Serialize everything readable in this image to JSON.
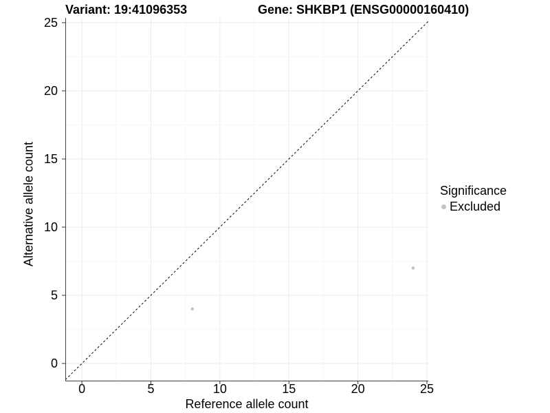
{
  "chart_data": {
    "type": "scatter",
    "title_left": "Variant: 19:41096353",
    "title_right": "Gene: SHKBP1 (ENSG00000160410)",
    "xlabel": "Reference allele count",
    "ylabel": "Alternative allele count",
    "xlim": [
      -1.2,
      25.1
    ],
    "ylim": [
      -1.26,
      25.35
    ],
    "x_ticks": [
      0,
      5,
      10,
      15,
      20,
      25
    ],
    "y_ticks": [
      0,
      5,
      10,
      15,
      20,
      25
    ],
    "x_minor_ticks": [
      2.5,
      7.5,
      12.5,
      17.5,
      22.5
    ],
    "y_minor_ticks": [
      2.5,
      7.5,
      12.5,
      17.5,
      22.5
    ],
    "grid": "on",
    "identity_line": {
      "present": true,
      "style": "dashed",
      "color": "#000000"
    },
    "points": [
      {
        "x": 8,
        "y": 4,
        "series": "Excluded"
      },
      {
        "x": 24,
        "y": 7,
        "series": "Excluded"
      }
    ],
    "point_color": "#c2c2c2",
    "colors": {
      "grid_major": "#ebebeb",
      "grid_minor": "#f6f6f6",
      "axis_line": "#404040",
      "tick_mark": "#333333",
      "text": "#000000"
    },
    "legend": {
      "title": "Significance",
      "position": "right",
      "items": [
        {
          "label": "Excluded",
          "color": "#c2c2c2"
        }
      ]
    }
  }
}
